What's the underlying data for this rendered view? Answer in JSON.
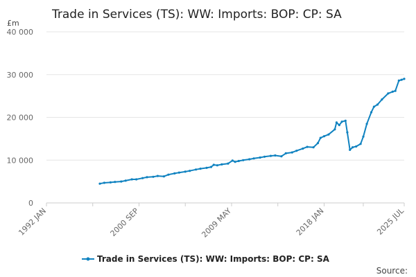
{
  "chart_data": {
    "type": "line",
    "title": "Trade in Services (TS): WW: Imports: BOP: CP: SA",
    "unit_label": "£m",
    "source_label": "Source:",
    "ylim": [
      0,
      40000
    ],
    "y_ticks": [
      0,
      10000,
      20000,
      30000,
      40000
    ],
    "y_tick_labels": [
      "0",
      "10 000",
      "20 000",
      "30 000",
      "40 000"
    ],
    "x_range": [
      "1992 JAN",
      "2025 JUL"
    ],
    "x_tick_labels": [
      "1992 JAN",
      "2000 SEP",
      "2009 MAY",
      "2018 JAN",
      "2025 JUL"
    ],
    "x_ticks": [
      "1992-01",
      "1996-05",
      "2000-09",
      "2005-01",
      "2009-05",
      "2013-09",
      "2018-01",
      "2021-09",
      "2025-07"
    ],
    "legend_position": "bottom",
    "grid": true,
    "color": "#0f82c0",
    "series": [
      {
        "name": "Trade in Services (TS): WW: Imports: BOP: CP: SA",
        "points": [
          [
            "1997-01",
            4500
          ],
          [
            "1997-06",
            4700
          ],
          [
            "1998-01",
            4800
          ],
          [
            "1998-06",
            4900
          ],
          [
            "1999-01",
            5000
          ],
          [
            "1999-06",
            5200
          ],
          [
            "2000-01",
            5500
          ],
          [
            "2000-06",
            5500
          ],
          [
            "2001-01",
            5800
          ],
          [
            "2001-06",
            6000
          ],
          [
            "2002-01",
            6100
          ],
          [
            "2002-06",
            6300
          ],
          [
            "2003-01",
            6200
          ],
          [
            "2003-06",
            6600
          ],
          [
            "2004-01",
            6900
          ],
          [
            "2004-06",
            7100
          ],
          [
            "2005-01",
            7300
          ],
          [
            "2005-06",
            7500
          ],
          [
            "2006-01",
            7800
          ],
          [
            "2006-06",
            8000
          ],
          [
            "2007-01",
            8200
          ],
          [
            "2007-06",
            8400
          ],
          [
            "2007-09",
            8900
          ],
          [
            "2008-01",
            8800
          ],
          [
            "2008-06",
            9000
          ],
          [
            "2009-01",
            9200
          ],
          [
            "2009-06",
            9900
          ],
          [
            "2009-09",
            9600
          ],
          [
            "2010-01",
            9800
          ],
          [
            "2010-06",
            10000
          ],
          [
            "2011-01",
            10200
          ],
          [
            "2011-06",
            10400
          ],
          [
            "2012-01",
            10600
          ],
          [
            "2012-06",
            10800
          ],
          [
            "2013-01",
            11000
          ],
          [
            "2013-06",
            11100
          ],
          [
            "2014-01",
            10900
          ],
          [
            "2014-06",
            11600
          ],
          [
            "2015-01",
            11800
          ],
          [
            "2015-06",
            12200
          ],
          [
            "2016-01",
            12700
          ],
          [
            "2016-06",
            13100
          ],
          [
            "2017-01",
            13000
          ],
          [
            "2017-06",
            14000
          ],
          [
            "2017-09",
            15200
          ],
          [
            "2018-01",
            15600
          ],
          [
            "2018-06",
            16000
          ],
          [
            "2019-01",
            17200
          ],
          [
            "2019-03",
            18800
          ],
          [
            "2019-06",
            18200
          ],
          [
            "2019-09",
            19000
          ],
          [
            "2020-01",
            19200
          ],
          [
            "2020-03",
            16500
          ],
          [
            "2020-06",
            12400
          ],
          [
            "2020-09",
            13000
          ],
          [
            "2021-01",
            13200
          ],
          [
            "2021-06",
            13800
          ],
          [
            "2021-09",
            15500
          ],
          [
            "2022-01",
            18500
          ],
          [
            "2022-06",
            21200
          ],
          [
            "2022-09",
            22500
          ],
          [
            "2023-01",
            23000
          ],
          [
            "2023-06",
            24200
          ],
          [
            "2024-01",
            25600
          ],
          [
            "2024-06",
            26000
          ],
          [
            "2024-09",
            26200
          ],
          [
            "2025-01",
            28600
          ],
          [
            "2025-04",
            28800
          ],
          [
            "2025-07",
            29000
          ]
        ]
      }
    ]
  }
}
